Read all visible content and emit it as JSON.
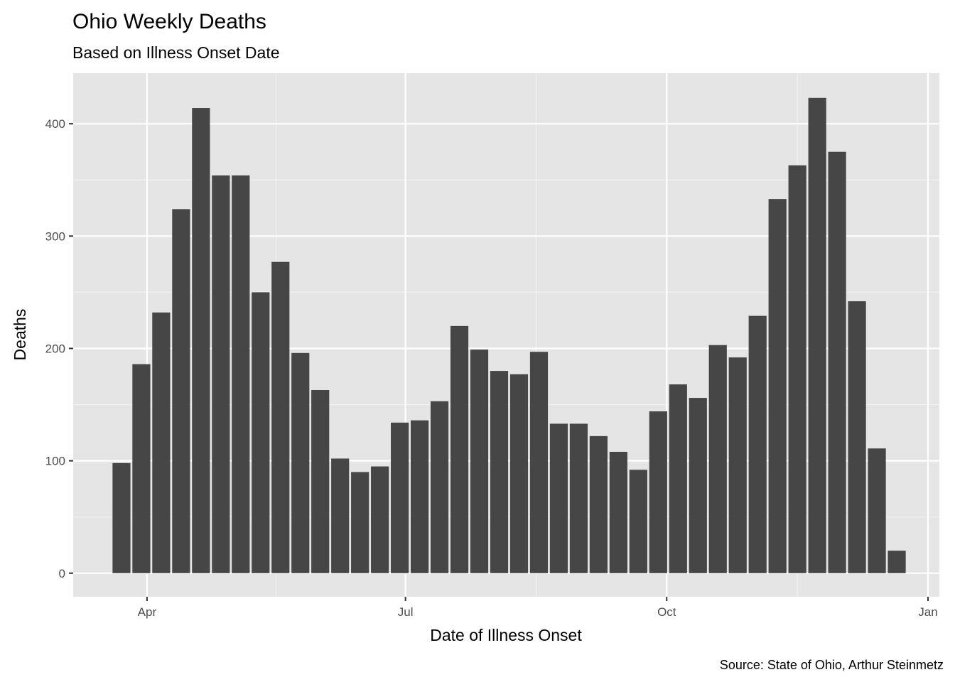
{
  "chart_data": {
    "type": "bar",
    "title": "Ohio Weekly Deaths",
    "subtitle": "Based on Illness Onset Date",
    "xlabel": "Date of Illness Onset",
    "ylabel": "Deaths",
    "caption": "Source: State of Ohio, Arthur Steinmetz",
    "bar_color": "#464646",
    "panel_color": "#e5e5e5",
    "grid": true,
    "xlim": [
      "2020-03-06",
      "2021-01-05"
    ],
    "ylim": [
      -21,
      445
    ],
    "x_ticks": [
      {
        "date": "2020-04-01",
        "label": "Apr"
      },
      {
        "date": "2020-07-01",
        "label": "Jul"
      },
      {
        "date": "2020-10-01",
        "label": "Oct"
      },
      {
        "date": "2021-01-01",
        "label": "Jan"
      }
    ],
    "y_ticks": [
      0,
      100,
      200,
      300,
      400
    ],
    "x": [
      "2020-03-23",
      "2020-03-30",
      "2020-04-06",
      "2020-04-13",
      "2020-04-20",
      "2020-04-27",
      "2020-05-04",
      "2020-05-11",
      "2020-05-18",
      "2020-05-25",
      "2020-06-01",
      "2020-06-08",
      "2020-06-15",
      "2020-06-22",
      "2020-06-29",
      "2020-07-06",
      "2020-07-13",
      "2020-07-20",
      "2020-07-27",
      "2020-08-03",
      "2020-08-10",
      "2020-08-17",
      "2020-08-24",
      "2020-08-31",
      "2020-09-07",
      "2020-09-14",
      "2020-09-21",
      "2020-09-28",
      "2020-10-05",
      "2020-10-12",
      "2020-10-19",
      "2020-10-26",
      "2020-11-02",
      "2020-11-09",
      "2020-11-16",
      "2020-11-23",
      "2020-11-30",
      "2020-12-07",
      "2020-12-14",
      "2020-12-21"
    ],
    "values": [
      98,
      186,
      232,
      324,
      414,
      354,
      354,
      250,
      277,
      196,
      163,
      102,
      90,
      95,
      134,
      136,
      153,
      220,
      199,
      180,
      177,
      197,
      133,
      133,
      122,
      108,
      92,
      144,
      168,
      156,
      203,
      192,
      229,
      333,
      363,
      423,
      375,
      242,
      111,
      20
    ]
  }
}
